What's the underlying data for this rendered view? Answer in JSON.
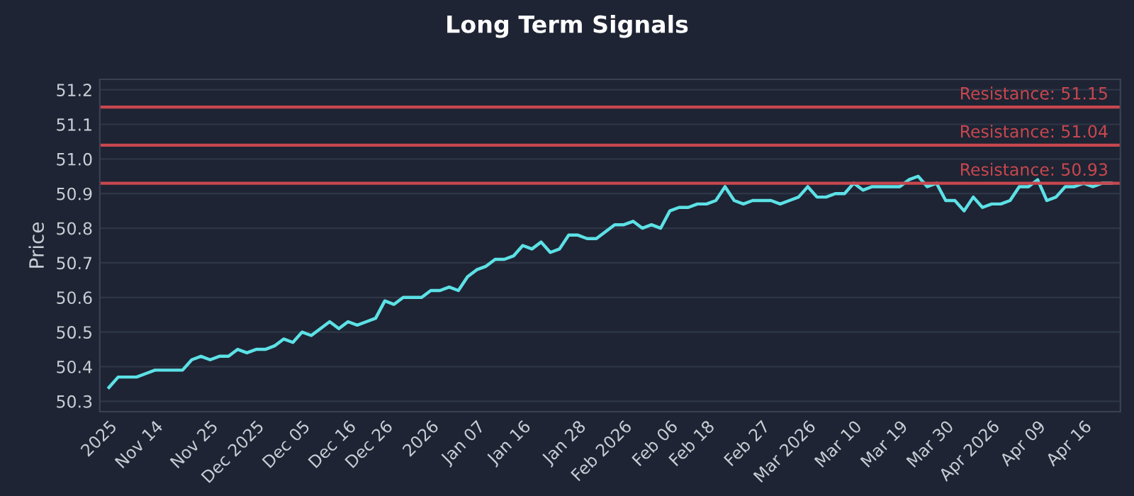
{
  "chart_data": {
    "type": "line",
    "title": "Long Term Signals",
    "ylabel": "Price",
    "categories": [
      "2025",
      null,
      null,
      null,
      null,
      "Nov 14",
      null,
      null,
      null,
      null,
      null,
      "Nov 25",
      null,
      null,
      null,
      null,
      "Dec 2025",
      null,
      null,
      null,
      null,
      "Dec 05",
      null,
      null,
      null,
      null,
      "Dec 16",
      null,
      null,
      null,
      "Dec 26",
      null,
      null,
      null,
      null,
      "2026",
      null,
      null,
      null,
      null,
      "Jan 07",
      null,
      null,
      null,
      null,
      "Jan 16",
      null,
      null,
      null,
      null,
      null,
      "Jan 28",
      null,
      null,
      null,
      null,
      "Feb 2026",
      null,
      null,
      null,
      null,
      "Feb 06",
      null,
      null,
      null,
      "Feb 18",
      null,
      null,
      null,
      null,
      null,
      "Feb 27",
      null,
      null,
      null,
      null,
      "Mar 2026",
      null,
      null,
      null,
      null,
      "Mar 10",
      null,
      null,
      null,
      null,
      "Mar 19",
      null,
      null,
      null,
      null,
      "Mar 30",
      null,
      null,
      null,
      null,
      "Apr 2026",
      null,
      null,
      null,
      null,
      "Apr 09",
      null,
      null,
      null,
      null,
      "Apr 16",
      null,
      null,
      null
    ],
    "series": [
      {
        "color": "#5ce1e6",
        "values": [
          50.34,
          50.37,
          50.37,
          50.37,
          50.38,
          50.39,
          50.39,
          50.39,
          50.39,
          50.42,
          50.43,
          50.42,
          50.43,
          50.43,
          50.45,
          50.44,
          50.45,
          50.45,
          50.46,
          50.48,
          50.47,
          50.5,
          50.49,
          50.51,
          50.53,
          50.51,
          50.53,
          50.52,
          50.53,
          50.54,
          50.59,
          50.58,
          50.6,
          50.6,
          50.6,
          50.62,
          50.62,
          50.63,
          50.62,
          50.66,
          50.68,
          50.69,
          50.71,
          50.71,
          50.72,
          50.75,
          50.74,
          50.76,
          50.73,
          50.74,
          50.78,
          50.78,
          50.77,
          50.77,
          50.79,
          50.81,
          50.81,
          50.82,
          50.8,
          50.81,
          50.8,
          50.85,
          50.86,
          50.86,
          50.87,
          50.87,
          50.88,
          50.92,
          50.88,
          50.87,
          50.88,
          50.88,
          50.88,
          50.87,
          50.88,
          50.89,
          50.92,
          50.89,
          50.89,
          50.9,
          50.9,
          50.93,
          50.91,
          50.92,
          50.92,
          50.92,
          50.92,
          50.94,
          50.95,
          50.92,
          50.93,
          50.88,
          50.88,
          50.85,
          50.89,
          50.86,
          50.87,
          50.87,
          50.88,
          50.92,
          50.92,
          50.94,
          50.88,
          50.89,
          50.92,
          50.92,
          50.93,
          50.92,
          50.93,
          50.93
        ]
      }
    ],
    "ylim": [
      50.27,
      51.23
    ],
    "yticks": [
      50.3,
      50.4,
      50.5,
      50.6,
      50.7,
      50.8,
      50.9,
      {
        "value": 51.0,
        "label": "51.0"
      },
      51.1,
      51.2
    ],
    "ref_lines": [
      {
        "axis": "y",
        "value": 51.15,
        "label": "Resistance: 51.15",
        "color": "#c8474f"
      },
      {
        "axis": "y",
        "value": 51.04,
        "label": "Resistance: 51.04",
        "color": "#c8474f"
      },
      {
        "axis": "y",
        "value": 50.93,
        "label": "Resistance: 50.93",
        "color": "#c8474f"
      }
    ],
    "grid": "y",
    "legend": false,
    "marker": "none",
    "line_style": "solid"
  }
}
